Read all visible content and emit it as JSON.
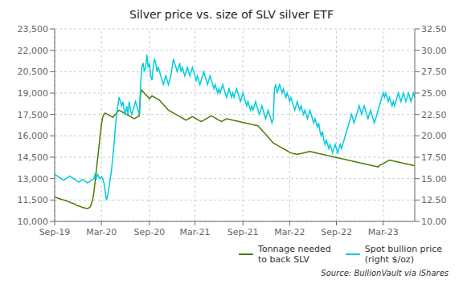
{
  "chart_data": {
    "type": "line",
    "title": "Silver price vs. size of SLV silver ETF",
    "annotations": [
      "Source: BullionVault via iShares"
    ],
    "categories": [
      "Sep-19",
      null,
      null,
      null,
      null,
      null,
      null,
      null,
      null,
      null,
      null,
      null,
      null,
      null,
      null,
      null,
      null,
      null,
      null,
      null,
      null,
      null,
      null,
      null,
      null,
      null,
      null,
      null,
      null,
      null,
      null,
      null,
      null,
      null,
      null,
      null,
      null,
      "Mar-20",
      null,
      null,
      null,
      null,
      null,
      null,
      null,
      null,
      null,
      null,
      null,
      null,
      null,
      null,
      null,
      null,
      null,
      null,
      null,
      null,
      null,
      null,
      null,
      null,
      null,
      null,
      null,
      null,
      null,
      null,
      null,
      null,
      null,
      null,
      null,
      null,
      null,
      "Sep-20",
      null,
      null,
      null,
      null,
      null,
      null,
      null,
      null,
      null,
      null,
      null,
      null,
      null,
      null,
      null,
      null,
      null,
      null,
      null,
      null,
      null,
      null,
      null,
      null,
      null,
      null,
      null,
      null,
      null,
      null,
      null,
      null,
      null,
      null,
      null,
      "Mar-21",
      null,
      null,
      null,
      null,
      null,
      null,
      null,
      null,
      null,
      null,
      null,
      null,
      null,
      null,
      null,
      null,
      null,
      null,
      null,
      null,
      null,
      null,
      null,
      null,
      null,
      null,
      null,
      null,
      null,
      null,
      null,
      null,
      null,
      null,
      null,
      null,
      null,
      "Sep-21",
      null,
      null,
      null,
      null,
      null,
      null,
      null,
      null,
      null,
      null,
      null,
      null,
      null,
      null,
      null,
      null,
      null,
      null,
      null,
      null,
      null,
      null,
      null,
      null,
      null,
      null,
      null,
      null,
      null,
      null,
      null,
      null,
      null,
      null,
      null,
      null,
      "Mar-22",
      null,
      null,
      null,
      null,
      null,
      null,
      null,
      null,
      null,
      null,
      null,
      null,
      null,
      null,
      null,
      null,
      null,
      null,
      null,
      null,
      null,
      null,
      null,
      null,
      null,
      null,
      null,
      null,
      null,
      null,
      null,
      null,
      null,
      null,
      null,
      null,
      "Sep-22",
      null,
      null,
      null,
      null,
      null,
      null,
      null,
      null,
      null,
      null,
      null,
      null,
      null,
      null,
      null,
      null,
      null,
      null,
      null,
      null,
      null,
      null,
      null,
      null,
      null,
      null,
      null,
      null,
      null,
      null,
      null,
      null,
      null,
      null,
      null,
      null,
      "Mar-23",
      null,
      null,
      null,
      null,
      null,
      null,
      null,
      null,
      null,
      null,
      null,
      null,
      null,
      null,
      null,
      null,
      null,
      null,
      null,
      null,
      null,
      null,
      null,
      null,
      null
    ],
    "series": [
      {
        "name": "Tonnage needed\nto back SLV",
        "color": "#4a7a00",
        "values": [
          11700,
          11680,
          11650,
          11620,
          11580,
          11560,
          11540,
          11500,
          11480,
          11450,
          11420,
          11380,
          11350,
          11300,
          11280,
          11250,
          11200,
          11150,
          11100,
          11080,
          11050,
          11020,
          10980,
          10960,
          10940,
          10920,
          10900,
          10950,
          11000,
          11200,
          11500,
          12000,
          12800,
          13600,
          14400,
          15200,
          16000,
          16800,
          17300,
          17500,
          17600,
          17550,
          17500,
          17450,
          17400,
          17350,
          17300,
          17400,
          17500,
          17600,
          17700,
          17800,
          17750,
          17700,
          17650,
          17600,
          17550,
          17500,
          17450,
          17400,
          17350,
          17300,
          17250,
          17200,
          17250,
          17300,
          17350,
          17400,
          19000,
          19200,
          19100,
          19000,
          18900,
          18800,
          18700,
          18600,
          18700,
          18800,
          18750,
          18700,
          18650,
          18600,
          18550,
          18500,
          18400,
          18300,
          18200,
          18100,
          18000,
          17900,
          17800,
          17750,
          17700,
          17650,
          17600,
          17550,
          17500,
          17450,
          17400,
          17350,
          17300,
          17250,
          17200,
          17150,
          17100,
          17150,
          17200,
          17250,
          17300,
          17350,
          17300,
          17250,
          17200,
          17150,
          17100,
          17050,
          17000,
          17050,
          17100,
          17150,
          17200,
          17250,
          17300,
          17350,
          17400,
          17350,
          17300,
          17250,
          17200,
          17150,
          17100,
          17050,
          17000,
          17050,
          17100,
          17150,
          17200,
          17180,
          17160,
          17140,
          17120,
          17100,
          17080,
          17060,
          17040,
          17020,
          17000,
          16980,
          16960,
          16940,
          16920,
          16900,
          16880,
          16860,
          16840,
          16820,
          16800,
          16780,
          16760,
          16740,
          16720,
          16700,
          16600,
          16500,
          16400,
          16300,
          16200,
          16100,
          16000,
          15900,
          15800,
          15700,
          15600,
          15500,
          15450,
          15400,
          15350,
          15300,
          15250,
          15200,
          15150,
          15100,
          15050,
          15000,
          14950,
          14900,
          14850,
          14800,
          14780,
          14760,
          14740,
          14720,
          14700,
          14720,
          14740,
          14760,
          14780,
          14800,
          14820,
          14840,
          14860,
          14880,
          14900,
          14880,
          14860,
          14840,
          14820,
          14800,
          14780,
          14760,
          14740,
          14720,
          14700,
          14680,
          14660,
          14640,
          14620,
          14600,
          14580,
          14560,
          14540,
          14520,
          14500,
          14480,
          14460,
          14440,
          14420,
          14400,
          14380,
          14360,
          14340,
          14320,
          14300,
          14280,
          14260,
          14240,
          14220,
          14200,
          14180,
          14160,
          14140,
          14120,
          14100,
          14080,
          14060,
          14040,
          14020,
          14000,
          13980,
          13960,
          13940,
          13920,
          13900,
          13880,
          13860,
          13840,
          13820,
          13900,
          13980,
          14000,
          14050,
          14100,
          14150,
          14200,
          14250,
          14300,
          14280,
          14260,
          14240,
          14220,
          14200,
          14180,
          14160,
          14140,
          14120,
          14100,
          14080,
          14060,
          14040,
          14020,
          14000,
          13980,
          13960,
          13940,
          13920,
          13900
        ]
      },
      {
        "name": "Spot bullion price\n(right $/oz)",
        "color": "#00ccdd",
        "axis": "y2",
        "values": [
          15.5,
          15.4,
          15.3,
          15.2,
          15.1,
          15.0,
          14.9,
          14.8,
          14.9,
          15.0,
          15.1,
          15.2,
          15.3,
          15.2,
          15.1,
          15.0,
          14.9,
          14.8,
          14.7,
          14.6,
          14.7,
          14.8,
          14.9,
          14.8,
          14.7,
          14.6,
          14.5,
          14.6,
          14.7,
          14.8,
          14.9,
          15.0,
          15.5,
          15.0,
          15.5,
          15.2,
          15.0,
          15.2,
          15.0,
          14.5,
          13.5,
          12.5,
          13.0,
          14.0,
          15.0,
          16.0,
          17.5,
          19.0,
          21.0,
          22.5,
          23.5,
          24.5,
          24.0,
          23.5,
          24.0,
          23.0,
          22.5,
          23.5,
          22.5,
          24.0,
          23.0,
          22.5,
          23.0,
          23.5,
          24.0,
          23.5,
          23.0,
          22.5,
          26.0,
          28.0,
          28.5,
          27.5,
          28.0,
          29.5,
          28.0,
          28.5,
          27.0,
          26.5,
          28.0,
          29.0,
          28.5,
          27.5,
          28.0,
          27.5,
          27.0,
          26.5,
          26.0,
          26.5,
          27.0,
          26.5,
          26.0,
          26.5,
          27.0,
          28.0,
          29.0,
          28.5,
          28.0,
          27.5,
          28.0,
          28.5,
          27.5,
          28.0,
          27.5,
          27.0,
          27.5,
          28.0,
          27.5,
          27.0,
          27.5,
          28.0,
          27.5,
          27.0,
          26.5,
          27.0,
          26.5,
          26.0,
          26.5,
          27.0,
          27.5,
          27.0,
          26.5,
          26.0,
          26.5,
          27.0,
          26.5,
          26.0,
          25.5,
          26.0,
          25.5,
          25.0,
          25.5,
          25.0,
          25.5,
          26.0,
          25.5,
          25.0,
          24.5,
          25.0,
          25.5,
          25.0,
          24.5,
          25.0,
          24.5,
          25.0,
          25.5,
          25.0,
          24.5,
          24.0,
          24.5,
          25.0,
          24.5,
          24.0,
          23.5,
          24.0,
          23.5,
          23.0,
          23.5,
          23.0,
          23.5,
          24.0,
          23.5,
          23.0,
          22.5,
          23.0,
          23.5,
          23.0,
          22.5,
          22.0,
          22.5,
          23.0,
          22.5,
          22.0,
          21.5,
          22.0,
          25.5,
          26.0,
          25.0,
          25.5,
          26.0,
          25.5,
          25.0,
          25.5,
          25.0,
          24.5,
          25.0,
          24.5,
          24.0,
          24.5,
          24.0,
          23.5,
          23.0,
          23.5,
          24.0,
          23.5,
          23.0,
          23.5,
          23.0,
          22.5,
          23.0,
          22.5,
          22.0,
          22.5,
          23.0,
          22.5,
          22.0,
          21.5,
          22.0,
          21.5,
          21.0,
          21.5,
          20.5,
          20.0,
          20.5,
          19.5,
          19.0,
          19.5,
          19.0,
          18.5,
          19.0,
          18.5,
          18.0,
          18.5,
          19.0,
          18.5,
          18.0,
          18.5,
          19.0,
          18.5,
          19.0,
          19.5,
          20.0,
          20.5,
          21.0,
          21.5,
          22.0,
          22.5,
          22.0,
          21.5,
          22.0,
          22.5,
          23.0,
          23.5,
          23.0,
          22.5,
          23.0,
          23.5,
          23.0,
          22.5,
          22.0,
          22.5,
          23.0,
          22.5,
          22.0,
          21.5,
          22.0,
          22.5,
          23.0,
          23.5,
          24.0,
          24.5,
          25.0,
          24.5,
          25.0,
          24.5,
          24.0,
          24.5,
          24.0,
          23.5,
          24.0,
          23.5,
          24.0,
          24.5,
          25.0,
          24.5,
          24.0,
          24.5,
          25.0,
          24.5,
          24.0,
          24.5,
          25.0,
          24.5,
          24.0,
          24.5,
          25.0,
          24.5
        ]
      }
    ],
    "ylim": [
      10000,
      23500
    ],
    "yticks": [
      {
        "value": 10000,
        "label": "10,000"
      },
      {
        "value": 11500,
        "label": "11,500"
      },
      {
        "value": 13000,
        "label": "13,000"
      },
      {
        "value": 14500,
        "label": "14,500"
      },
      {
        "value": 16000,
        "label": "16,000"
      },
      {
        "value": 17500,
        "label": "17,500"
      },
      {
        "value": 19000,
        "label": "19,000"
      },
      {
        "value": 20500,
        "label": "20,500"
      },
      {
        "value": 22000,
        "label": "22,000"
      },
      {
        "value": 23500,
        "label": "23,500"
      }
    ],
    "y2lim": [
      10.0,
      32.5
    ],
    "y2ticks": [
      {
        "value": 10.0,
        "label": "10.00"
      },
      {
        "value": 12.5,
        "label": "12.50"
      },
      {
        "value": 15.0,
        "label": "15.00"
      },
      {
        "value": 17.5,
        "label": "17.50"
      },
      {
        "value": 20.0,
        "label": "20.00"
      },
      {
        "value": 22.5,
        "label": "22.50"
      },
      {
        "value": 25.0,
        "label": "25.00"
      },
      {
        "value": 27.5,
        "label": "27.50"
      },
      {
        "value": 30.0,
        "label": "30.00"
      },
      {
        "value": 32.5,
        "label": "32.50"
      }
    ],
    "grid": true,
    "legend": "lower right"
  }
}
